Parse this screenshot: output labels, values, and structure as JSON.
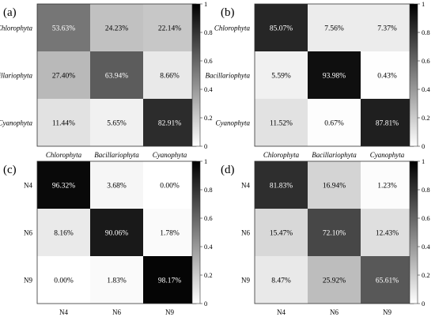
{
  "chart_data": [
    {
      "type": "heatmap",
      "panel_label": "(a)",
      "rows": [
        "Chlorophyta",
        "Bacillariophyta",
        "Cyanophyta"
      ],
      "columns": [
        "Chlorophyta",
        "Bacillariophyta",
        "Cyanophyta"
      ],
      "italic_labels": true,
      "values": [
        [
          53.63,
          24.23,
          22.14
        ],
        [
          27.4,
          63.94,
          8.66
        ],
        [
          11.44,
          5.65,
          82.91
        ]
      ],
      "cell_labels": [
        [
          "53.63%",
          "24.23%",
          "22.14%"
        ],
        [
          "27.40%",
          "63.94%",
          "8.66%"
        ],
        [
          "11.44%",
          "5.65%",
          "82.91%"
        ]
      ],
      "colorbar": {
        "range": [
          0,
          1
        ],
        "ticks": [
          "0",
          "0.2",
          "0.4",
          "0.6",
          "0.8",
          "1"
        ],
        "colors": "white-to-black"
      }
    },
    {
      "type": "heatmap",
      "panel_label": "(b)",
      "rows": [
        "Chlorophyta",
        "Bacillariophyta",
        "Cyanophyta"
      ],
      "columns": [
        "Chlorophyta",
        "Bacillariophyta",
        "Cyanophyta"
      ],
      "italic_labels": true,
      "values": [
        [
          85.07,
          7.56,
          7.37
        ],
        [
          5.59,
          93.98,
          0.43
        ],
        [
          11.52,
          0.67,
          87.81
        ]
      ],
      "cell_labels": [
        [
          "85.07%",
          "7.56%",
          "7.37%"
        ],
        [
          "5.59%",
          "93.98%",
          "0.43%"
        ],
        [
          "11.52%",
          "0.67%",
          "87.81%"
        ]
      ],
      "colorbar": {
        "range": [
          0,
          1
        ],
        "ticks": [
          "0",
          "0.2",
          "0.4",
          "0.6",
          "0.8",
          "1"
        ],
        "colors": "white-to-black"
      }
    },
    {
      "type": "heatmap",
      "panel_label": "(c)",
      "rows": [
        "N4",
        "N6",
        "N9"
      ],
      "columns": [
        "N4",
        "N6",
        "N9"
      ],
      "italic_labels": false,
      "values": [
        [
          96.32,
          3.68,
          0.0
        ],
        [
          8.16,
          90.06,
          1.78
        ],
        [
          0.0,
          1.83,
          98.17
        ]
      ],
      "cell_labels": [
        [
          "96.32%",
          "3.68%",
          "0.00%"
        ],
        [
          "8.16%",
          "90.06%",
          "1.78%"
        ],
        [
          "0.00%",
          "1.83%",
          "98.17%"
        ]
      ],
      "colorbar": {
        "range": [
          0,
          1
        ],
        "ticks": [
          "0",
          "0.2",
          "0.4",
          "0.6",
          "0.8",
          "1"
        ],
        "colors": "white-to-black"
      }
    },
    {
      "type": "heatmap",
      "panel_label": "(d)",
      "rows": [
        "N4",
        "N6",
        "N9"
      ],
      "columns": [
        "N4",
        "N6",
        "N9"
      ],
      "italic_labels": false,
      "values": [
        [
          81.83,
          16.94,
          1.23
        ],
        [
          15.47,
          72.1,
          12.43
        ],
        [
          8.47,
          25.92,
          65.61
        ]
      ],
      "cell_labels": [
        [
          "81.83%",
          "16.94%",
          "1.23%"
        ],
        [
          "15.47%",
          "72.10%",
          "12.43%"
        ],
        [
          "8.47%",
          "25.92%",
          "65.61%"
        ]
      ],
      "colorbar": {
        "range": [
          0,
          1
        ],
        "ticks": [
          "0",
          "0.2",
          "0.4",
          "0.6",
          "0.8",
          "1"
        ],
        "colors": "white-to-black"
      }
    }
  ]
}
